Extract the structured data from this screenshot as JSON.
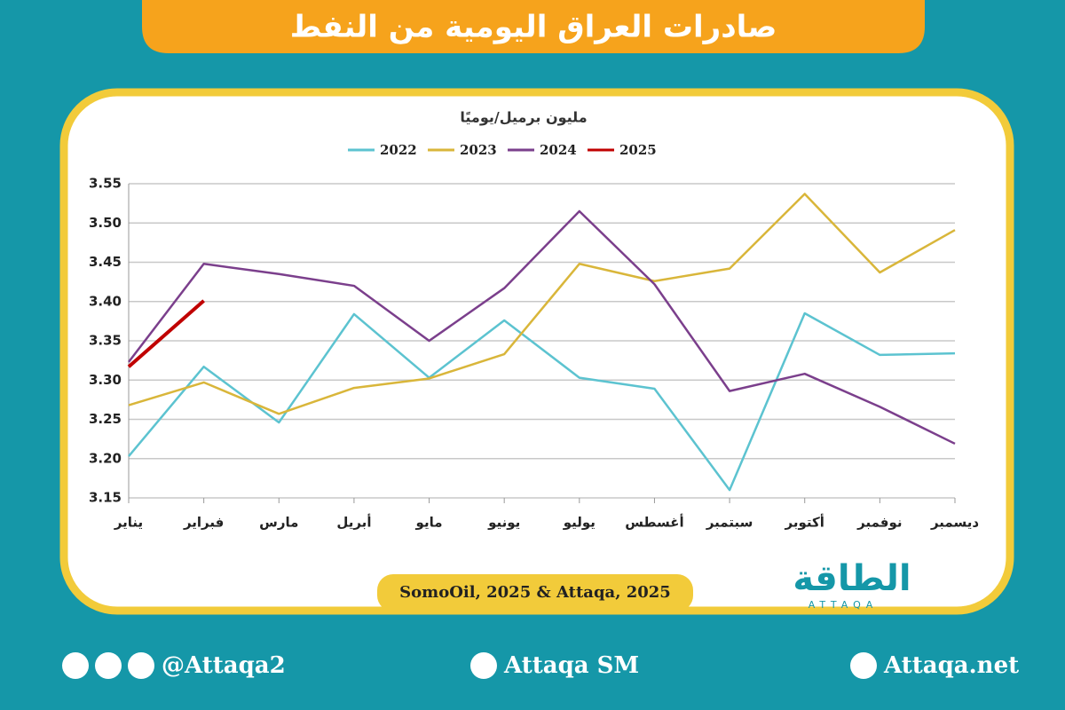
{
  "chart_data": {
    "type": "line",
    "title": "صادرات العراق اليومية من النفط",
    "y_label": "مليون برميل/يوميًا",
    "categories": [
      "يناير",
      "فبراير",
      "مارس",
      "أبريل",
      "مايو",
      "يونيو",
      "يوليو",
      "أغسطس",
      "سبتمبر",
      "أكتوبر",
      "نوفمبر",
      "ديسمبر"
    ],
    "series": [
      {
        "name": "2022",
        "color": "#5cc3d0",
        "values": [
          3.203,
          3.317,
          3.246,
          3.384,
          3.303,
          3.376,
          3.303,
          3.289,
          3.16,
          3.385,
          3.332,
          3.334
        ]
      },
      {
        "name": "2023",
        "color": "#d9b63a",
        "values": [
          3.268,
          3.297,
          3.257,
          3.29,
          3.302,
          3.333,
          3.448,
          3.426,
          3.442,
          3.537,
          3.437,
          3.491
        ]
      },
      {
        "name": "2024",
        "color": "#7b3f8c",
        "values": [
          3.323,
          3.448,
          3.435,
          3.42,
          3.35,
          3.417,
          3.515,
          3.422,
          3.286,
          3.308,
          3.266,
          3.219
        ]
      },
      {
        "name": "2025",
        "color": "#c00000",
        "values": [
          3.317,
          3.401,
          null,
          null,
          null,
          null,
          null,
          null,
          null,
          null,
          null,
          null
        ]
      }
    ],
    "ylim": [
      3.15,
      3.55
    ],
    "yticks": [
      3.15,
      {
        "value": 3.2,
        "label": "3.20"
      },
      3.25,
      {
        "value": 3.3,
        "label": "3.30"
      },
      3.35,
      {
        "value": 3.4,
        "label": "3.40"
      },
      3.45,
      {
        "value": 3.5,
        "label": "3.50"
      },
      3.55
    ],
    "grid": true,
    "source": "SomoOil, 2025 & Attaqa, 2025"
  },
  "logo": {
    "name": "الطاقة",
    "latin": "ATTAQA"
  },
  "footer": {
    "social": "@Attaqa2",
    "youtube": "Attaqa SM",
    "website": "Attaqa.net"
  }
}
